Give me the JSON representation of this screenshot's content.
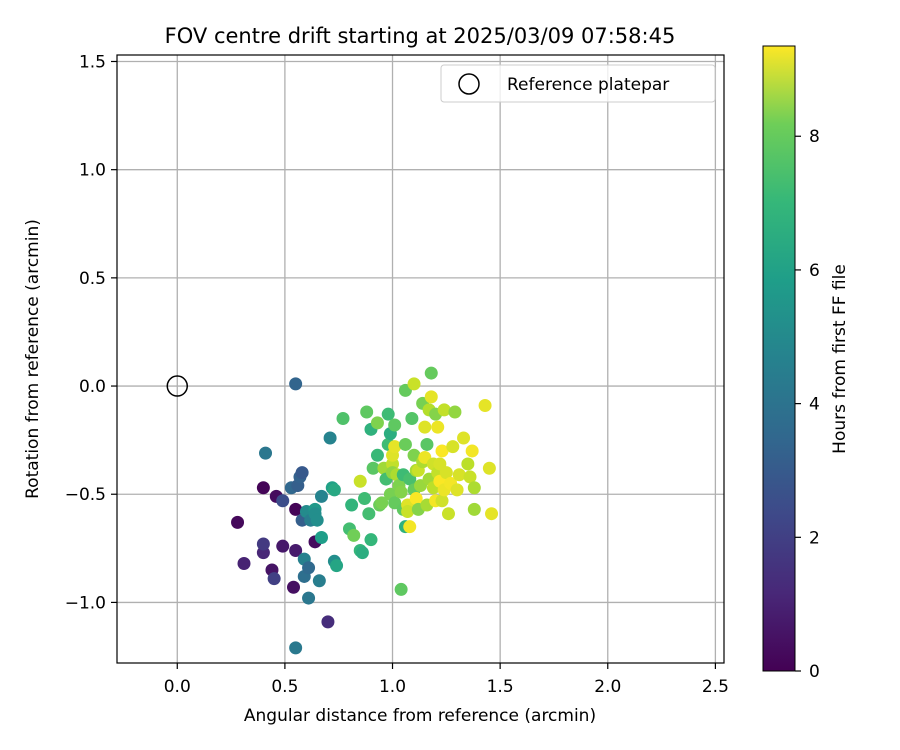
{
  "chart_data": {
    "type": "scatter",
    "title": "FOV centre drift starting at 2025/03/09 07:58:45",
    "xlabel": "Angular distance from reference (arcmin)",
    "ylabel": "Rotation from reference (arcmin)",
    "xlim": [
      -0.28,
      2.54
    ],
    "ylim": [
      -1.28,
      1.53
    ],
    "xticks": [
      0.0,
      0.5,
      1.0,
      1.5,
      2.0,
      2.5
    ],
    "xtick_labels": [
      "0.0",
      "0.5",
      "1.0",
      "1.5",
      "2.0",
      "2.5"
    ],
    "yticks": [
      -1.0,
      -0.5,
      0.0,
      0.5,
      1.0,
      1.5
    ],
    "ytick_labels": [
      "−1.0",
      "−0.5",
      "0.0",
      "0.5",
      "1.0",
      "1.5"
    ],
    "grid": true,
    "legend": {
      "position": "top-right",
      "entries": [
        "Reference platepar"
      ]
    },
    "reference_point": {
      "x": 0.0,
      "y": 0.0
    },
    "colorbar": {
      "label": "Hours from first FF file",
      "colormap": "viridis",
      "range": [
        0,
        9.35
      ],
      "ticks": [
        0,
        2,
        4,
        6,
        8
      ],
      "tick_labels": [
        "0",
        "2",
        "4",
        "6",
        "8"
      ]
    },
    "points": [
      [
        0.28,
        -0.63,
        0.2
      ],
      [
        0.31,
        -0.82,
        0.9
      ],
      [
        0.4,
        -0.77,
        1.0
      ],
      [
        0.4,
        -0.73,
        1.6
      ],
      [
        0.4,
        -0.47,
        0.1
      ],
      [
        0.44,
        -0.85,
        0.5
      ],
      [
        0.45,
        -0.89,
        1.8
      ],
      [
        0.46,
        -0.51,
        0.3
      ],
      [
        0.49,
        -0.53,
        2.2
      ],
      [
        0.49,
        -0.74,
        0.6
      ],
      [
        0.54,
        -0.93,
        0.4
      ],
      [
        0.55,
        -0.76,
        0.7
      ],
      [
        0.55,
        -0.57,
        0.1
      ],
      [
        0.6,
        -0.61,
        0.2
      ],
      [
        0.64,
        -0.72,
        0.3
      ],
      [
        0.7,
        -1.09,
        1.2
      ],
      [
        0.41,
        -0.31,
        3.7
      ],
      [
        0.53,
        -0.47,
        3.1
      ],
      [
        0.56,
        -0.46,
        2.8
      ],
      [
        0.57,
        -0.42,
        2.9
      ],
      [
        0.58,
        -0.4,
        2.6
      ],
      [
        0.58,
        -0.62,
        2.8
      ],
      [
        0.55,
        -1.21,
        3.8
      ],
      [
        0.55,
        0.01,
        3.0
      ],
      [
        0.59,
        -0.88,
        3.4
      ],
      [
        0.59,
        -0.8,
        4.1
      ],
      [
        0.6,
        -0.58,
        4.5
      ],
      [
        0.61,
        -0.98,
        3.7
      ],
      [
        0.61,
        -0.84,
        3.2
      ],
      [
        0.62,
        -0.62,
        4.0
      ],
      [
        0.64,
        -0.57,
        5.0
      ],
      [
        0.64,
        -0.59,
        4.6
      ],
      [
        0.65,
        -0.62,
        4.6
      ],
      [
        0.66,
        -0.9,
        4.0
      ],
      [
        0.67,
        -0.51,
        4.2
      ],
      [
        0.67,
        -0.7,
        5.2
      ],
      [
        0.71,
        -0.24,
        4.2
      ],
      [
        0.72,
        -0.47,
        5.3
      ],
      [
        0.73,
        -0.48,
        5.6
      ],
      [
        0.73,
        -0.81,
        4.6
      ],
      [
        0.74,
        -0.83,
        5.5
      ],
      [
        0.77,
        -0.15,
        6.7
      ],
      [
        0.8,
        -0.66,
        6.5
      ],
      [
        0.81,
        -0.55,
        6.1
      ],
      [
        0.82,
        -0.69,
        7.3
      ],
      [
        0.85,
        -0.44,
        8.6
      ],
      [
        0.85,
        -0.76,
        6.2
      ],
      [
        0.86,
        -0.77,
        5.8
      ],
      [
        0.87,
        -0.52,
        6.4
      ],
      [
        0.88,
        -0.12,
        7.0
      ],
      [
        0.89,
        -0.59,
        6.5
      ],
      [
        0.9,
        -0.71,
        6.2
      ],
      [
        0.9,
        -0.2,
        6.0
      ],
      [
        0.91,
        -0.38,
        6.9
      ],
      [
        0.93,
        -0.17,
        7.5
      ],
      [
        0.93,
        -0.32,
        6.3
      ],
      [
        0.94,
        -0.55,
        7.2
      ],
      [
        0.95,
        -0.54,
        7.4
      ],
      [
        0.96,
        -0.38,
        8.0
      ],
      [
        0.97,
        -0.43,
        6.5
      ],
      [
        0.98,
        -0.13,
        6.4
      ],
      [
        0.98,
        -0.27,
        6.4
      ],
      [
        0.99,
        -0.22,
        5.8
      ],
      [
        0.99,
        -0.5,
        7.4
      ],
      [
        1.0,
        -0.36,
        8.5
      ],
      [
        1.0,
        -0.32,
        8.9
      ],
      [
        1.0,
        -0.4,
        7.8
      ],
      [
        1.01,
        -0.28,
        9.0
      ],
      [
        1.01,
        -0.18,
        7.0
      ],
      [
        1.01,
        -0.54,
        7.1
      ],
      [
        1.02,
        -0.41,
        8.2
      ],
      [
        1.03,
        -0.46,
        7.5
      ],
      [
        1.04,
        -0.94,
        7.0
      ],
      [
        1.04,
        -0.49,
        7.6
      ],
      [
        1.05,
        -0.57,
        7.0
      ],
      [
        1.05,
        -0.41,
        6.4
      ],
      [
        1.06,
        -0.65,
        6.0
      ],
      [
        1.06,
        -0.27,
        7.2
      ],
      [
        1.06,
        -0.02,
        7.1
      ],
      [
        1.07,
        -0.55,
        8.9
      ],
      [
        1.07,
        -0.58,
        8.6
      ],
      [
        1.08,
        -0.43,
        6.6
      ],
      [
        1.08,
        -0.65,
        9.2
      ],
      [
        1.09,
        -0.15,
        6.8
      ],
      [
        1.1,
        0.01,
        8.6
      ],
      [
        1.1,
        -0.32,
        7.5
      ],
      [
        1.1,
        -0.48,
        7.1
      ],
      [
        1.11,
        -0.39,
        8.1
      ],
      [
        1.11,
        -0.52,
        9.3
      ],
      [
        1.12,
        -0.57,
        7.6
      ],
      [
        1.12,
        -0.39,
        8.6
      ],
      [
        1.13,
        -0.46,
        7.9
      ],
      [
        1.14,
        -0.35,
        8.2
      ],
      [
        1.14,
        -0.08,
        7.4
      ],
      [
        1.15,
        -0.33,
        9.1
      ],
      [
        1.15,
        -0.19,
        8.9
      ],
      [
        1.16,
        -0.55,
        8.1
      ],
      [
        1.16,
        -0.27,
        6.9
      ],
      [
        1.17,
        -0.11,
        8.3
      ],
      [
        1.17,
        -0.43,
        8.0
      ],
      [
        1.18,
        -0.05,
        9.0
      ],
      [
        1.18,
        0.06,
        7.1
      ],
      [
        1.19,
        -0.47,
        8.4
      ],
      [
        1.19,
        -0.36,
        8.7
      ],
      [
        1.2,
        -0.53,
        9.2
      ],
      [
        1.2,
        -0.13,
        7.6
      ],
      [
        1.21,
        -0.4,
        8.5
      ],
      [
        1.21,
        -0.19,
        9.1
      ],
      [
        1.22,
        -0.44,
        9.3
      ],
      [
        1.22,
        -0.36,
        8.8
      ],
      [
        1.23,
        -0.53,
        8.7
      ],
      [
        1.23,
        -0.3,
        9.3
      ],
      [
        1.24,
        -0.11,
        8.5
      ],
      [
        1.24,
        -0.48,
        9.1
      ],
      [
        1.25,
        -0.4,
        8.8
      ],
      [
        1.26,
        -0.59,
        8.6
      ],
      [
        1.27,
        -0.45,
        9.2
      ],
      [
        1.28,
        -0.28,
        8.8
      ],
      [
        1.29,
        -0.12,
        7.8
      ],
      [
        1.3,
        -0.48,
        8.9
      ],
      [
        1.31,
        -0.41,
        8.8
      ],
      [
        1.33,
        -0.24,
        8.9
      ],
      [
        1.35,
        -0.36,
        8.4
      ],
      [
        1.36,
        -0.42,
        8.6
      ],
      [
        1.37,
        -0.3,
        9.2
      ],
      [
        1.38,
        -0.57,
        8.0
      ],
      [
        1.38,
        -0.47,
        8.2
      ],
      [
        1.43,
        -0.09,
        9.0
      ],
      [
        1.45,
        -0.38,
        8.9
      ],
      [
        1.46,
        -0.59,
        9.0
      ]
    ]
  }
}
